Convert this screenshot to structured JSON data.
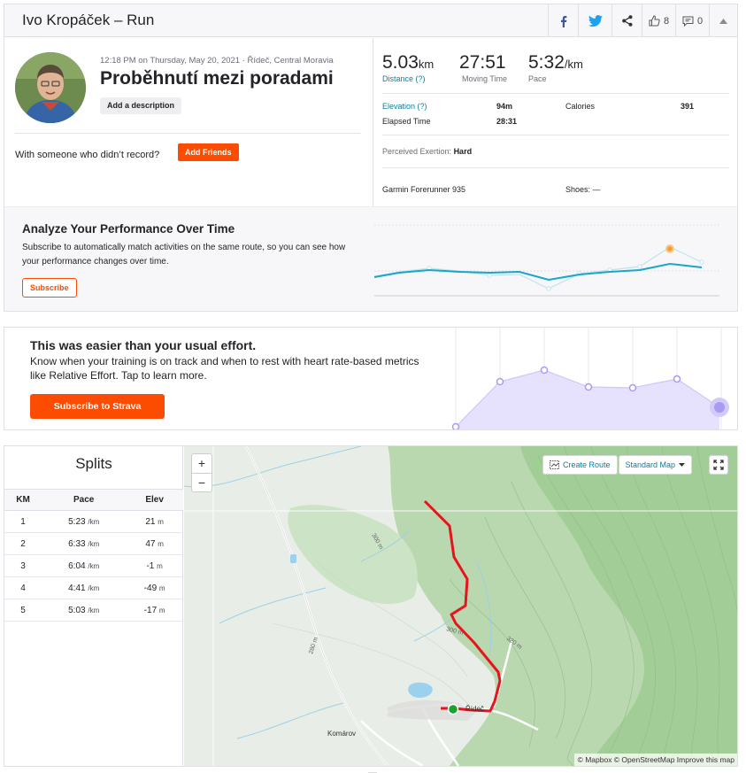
{
  "header": {
    "title": "Ivo Kropáček – Run",
    "kudos_count": "8",
    "comment_count": "0"
  },
  "activity": {
    "meta": "12:18 PM on Thursday, May 20, 2021 · Řídeč, Central Moravia",
    "name": "Proběhnutí mezi poradami",
    "add_description": "Add a description",
    "with_someone": "With someone who didn’t record?",
    "add_friends": "Add Friends"
  },
  "stats": {
    "distance": {
      "value": "5.03",
      "unit": "km",
      "label": "Distance (?)"
    },
    "moving_time": {
      "value": "27:51",
      "label": "Moving Time"
    },
    "pace": {
      "value": "5:32",
      "unit": "/km",
      "label": "Pace"
    },
    "elevation_label": "Elevation (?)",
    "elevation_value": "94m",
    "calories_label": "Calories",
    "calories_value": "391",
    "elapsed_label": "Elapsed Time",
    "elapsed_value": "28:31",
    "exertion_label": "Perceived Exertion:",
    "exertion_value": "Hard",
    "device": "Garmin Forerunner 935",
    "shoes_label": "Shoes:",
    "shoes_value": "—"
  },
  "performance": {
    "title": "Analyze Your Performance Over Time",
    "text": "Subscribe to automatically match activities on the same route, so you can see how your performance changes over time.",
    "button": "Subscribe"
  },
  "effort": {
    "title": "This was easier than your usual effort.",
    "text": "Know when your training is on track and when to rest with heart rate-based metrics like Relative Effort. Tap to learn more.",
    "button": "Subscribe to Strava"
  },
  "splits": {
    "title": "Splits",
    "headers": [
      "KM",
      "Pace",
      "Elev"
    ],
    "rows": [
      {
        "km": "1",
        "pace": "5:23",
        "pace_unit": "/km",
        "elev": "21",
        "elev_unit": "m"
      },
      {
        "km": "2",
        "pace": "6:33",
        "pace_unit": "/km",
        "elev": "47",
        "elev_unit": "m"
      },
      {
        "km": "3",
        "pace": "6:04",
        "pace_unit": "/km",
        "elev": "-1",
        "elev_unit": "m"
      },
      {
        "km": "4",
        "pace": "4:41",
        "pace_unit": "/km",
        "elev": "-49",
        "elev_unit": "m"
      },
      {
        "km": "5",
        "pace": "5:03",
        "pace_unit": "/km",
        "elev": "-17",
        "elev_unit": "m"
      }
    ]
  },
  "map": {
    "zoom_in": "+",
    "zoom_out": "−",
    "create_route": "Create Route",
    "map_style": "Standard Map",
    "attribution": "© Mapbox © OpenStreetMap Improve this map",
    "labels": {
      "contour_300a": "300 m",
      "contour_300b": "300 m",
      "contour_320": "320 m",
      "contour_280": "280 m",
      "town_ridec": "Řídeč",
      "town_komarov": "Komárov"
    }
  },
  "colors": {
    "brand": "#fc4c02",
    "link": "#0a7fa0",
    "route": "#e8131b",
    "start": "#1aa32c"
  }
}
